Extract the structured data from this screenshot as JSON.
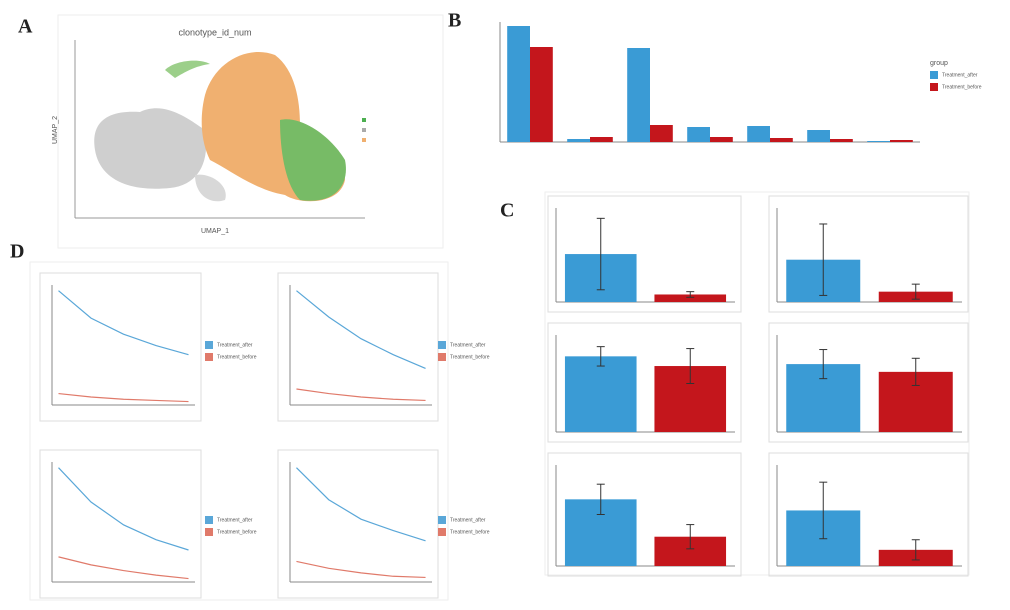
{
  "panel_labels": [
    "A",
    "B",
    "C",
    "D"
  ],
  "umap": {
    "title": "clonotype_id_num",
    "xlabel": "UMAP_1",
    "ylabel": "UMAP_2"
  },
  "chart_data": [
    {
      "type": "bar",
      "categories": [
        null,
        null,
        null,
        null,
        null,
        null,
        null
      ],
      "ylim": [
        0,
        120
      ],
      "legend_title": "group",
      "series": [
        {
          "name": "Treatment_after",
          "color": "#3a9bd5",
          "values": [
            116,
            3,
            94,
            15,
            16,
            12,
            1
          ]
        },
        {
          "name": "Treatment_before",
          "color": "#c4161c",
          "values": [
            95,
            5,
            17,
            5,
            4,
            3,
            2
          ]
        }
      ]
    },
    {
      "type": "errbar",
      "ylim": [
        0,
        100
      ],
      "series": [
        {
          "name": "Treatment_after",
          "color": "#3a9bd5",
          "values": [
            51
          ],
          "errors": [
            38
          ]
        },
        {
          "name": "Treatment_before",
          "color": "#c4161c",
          "values": [
            8
          ],
          "errors": [
            3
          ]
        }
      ]
    },
    {
      "type": "errbar",
      "ylim": [
        0,
        100
      ],
      "series": [
        {
          "name": "Treatment_after",
          "color": "#3a9bd5",
          "values": [
            45
          ],
          "errors": [
            38
          ]
        },
        {
          "name": "Treatment_before",
          "color": "#c4161c",
          "values": [
            11
          ],
          "errors": [
            8
          ]
        }
      ]
    },
    {
      "type": "errbar",
      "ylim": [
        0,
        100
      ],
      "series": [
        {
          "name": "Treatment_after",
          "color": "#3a9bd5",
          "values": [
            78
          ],
          "errors": [
            10
          ]
        },
        {
          "name": "Treatment_before",
          "color": "#c4161c",
          "values": [
            68
          ],
          "errors": [
            18
          ]
        }
      ]
    },
    {
      "type": "errbar",
      "ylim": [
        0,
        100
      ],
      "series": [
        {
          "name": "Treatment_after",
          "color": "#3a9bd5",
          "values": [
            70
          ],
          "errors": [
            15
          ]
        },
        {
          "name": "Treatment_before",
          "color": "#c4161c",
          "values": [
            62
          ],
          "errors": [
            14
          ]
        }
      ]
    },
    {
      "type": "errbar",
      "ylim": [
        0,
        100
      ],
      "series": [
        {
          "name": "Treatment_after",
          "color": "#3a9bd5",
          "values": [
            66
          ],
          "errors": [
            15
          ]
        },
        {
          "name": "Treatment_before",
          "color": "#c4161c",
          "values": [
            29
          ],
          "errors": [
            12
          ]
        }
      ]
    },
    {
      "type": "errbar",
      "ylim": [
        0,
        100
      ],
      "series": [
        {
          "name": "Treatment_after",
          "color": "#3a9bd5",
          "values": [
            55
          ],
          "errors": [
            28
          ]
        },
        {
          "name": "Treatment_before",
          "color": "#c4161c",
          "values": [
            16
          ],
          "errors": [
            10
          ]
        }
      ]
    },
    {
      "type": "line",
      "x": [
        1,
        2,
        3,
        4,
        5
      ],
      "xlim": [
        0.8,
        5.2
      ],
      "ylim": [
        0,
        105
      ],
      "series": [
        {
          "name": "Treatment_after",
          "color": "#5aa7d8",
          "values": [
            100,
            76,
            62,
            52,
            44
          ]
        },
        {
          "name": "Treatment_before",
          "color": "#e07a6a",
          "values": [
            10,
            7,
            5,
            4,
            3
          ]
        }
      ]
    },
    {
      "type": "line",
      "x": [
        1,
        2,
        3,
        4,
        5
      ],
      "xlim": [
        0.8,
        5.2
      ],
      "ylim": [
        0,
        105
      ],
      "series": [
        {
          "name": "Treatment_after",
          "color": "#5aa7d8",
          "values": [
            100,
            77,
            58,
            44,
            32
          ]
        },
        {
          "name": "Treatment_before",
          "color": "#e07a6a",
          "values": [
            14,
            10,
            7,
            5,
            4
          ]
        }
      ]
    },
    {
      "type": "line",
      "x": [
        1,
        2,
        3,
        4,
        5
      ],
      "xlim": [
        0.8,
        5.2
      ],
      "ylim": [
        0,
        105
      ],
      "series": [
        {
          "name": "Treatment_after",
          "color": "#5aa7d8",
          "values": [
            100,
            70,
            50,
            37,
            28
          ]
        },
        {
          "name": "Treatment_before",
          "color": "#e07a6a",
          "values": [
            22,
            15,
            10,
            6,
            3
          ]
        }
      ]
    },
    {
      "type": "line",
      "x": [
        1,
        2,
        3,
        4,
        5
      ],
      "xlim": [
        0.8,
        5.2
      ],
      "ylim": [
        0,
        105
      ],
      "series": [
        {
          "name": "Treatment_after",
          "color": "#5aa7d8",
          "values": [
            100,
            72,
            55,
            45,
            36
          ]
        },
        {
          "name": "Treatment_before",
          "color": "#e07a6a",
          "values": [
            18,
            12,
            8,
            5,
            4
          ]
        }
      ]
    }
  ]
}
